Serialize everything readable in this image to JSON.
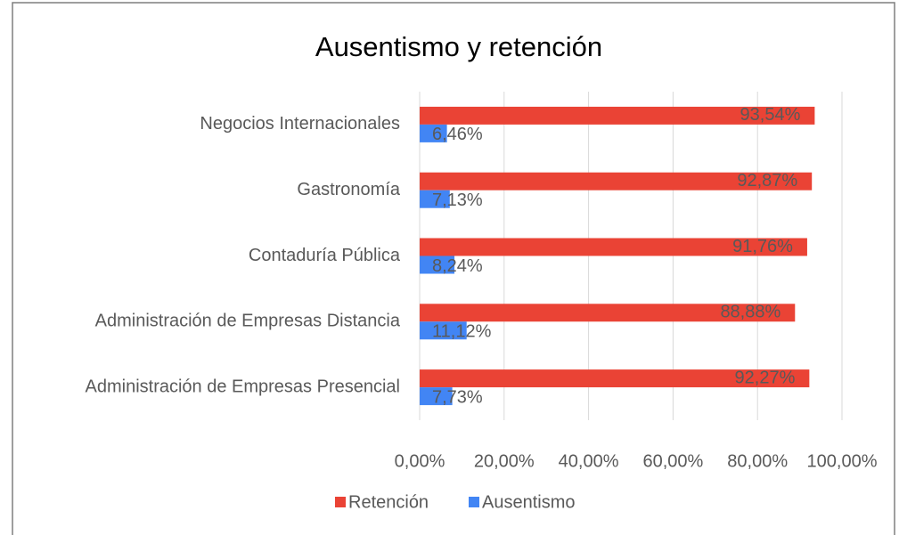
{
  "chart_data": {
    "type": "bar",
    "orientation": "horizontal",
    "title": "Ausentismo y retención",
    "categories": [
      "Negocios Internacionales",
      "Gastronomía",
      "Contaduría Pública",
      "Administración de Empresas Distancia",
      "Administración de Empresas Presencial"
    ],
    "series": [
      {
        "name": "Retención",
        "color": "#ea4335",
        "values": [
          93.54,
          92.87,
          91.76,
          88.88,
          92.27
        ],
        "value_labels": [
          "93,54%",
          "92,87%",
          "91,76%",
          "88,88%",
          "92,27%"
        ]
      },
      {
        "name": "Ausentismo",
        "color": "#4285f4",
        "values": [
          6.46,
          7.13,
          8.24,
          11.12,
          7.73
        ],
        "value_labels": [
          "6,46%",
          "7,13%",
          "8,24%",
          "11,12%",
          "7,73%"
        ]
      }
    ],
    "xlim": [
      0,
      100
    ],
    "xticks": [
      {
        "value": 0,
        "label": "0,00%"
      },
      {
        "value": 20,
        "label": "20,00%"
      },
      {
        "value": 40,
        "label": "40,00%"
      },
      {
        "value": 60,
        "label": "60,00%"
      },
      {
        "value": 80,
        "label": "80,00%"
      },
      {
        "value": 100,
        "label": "100,00%"
      }
    ],
    "grid": true,
    "legend": "bottom"
  }
}
